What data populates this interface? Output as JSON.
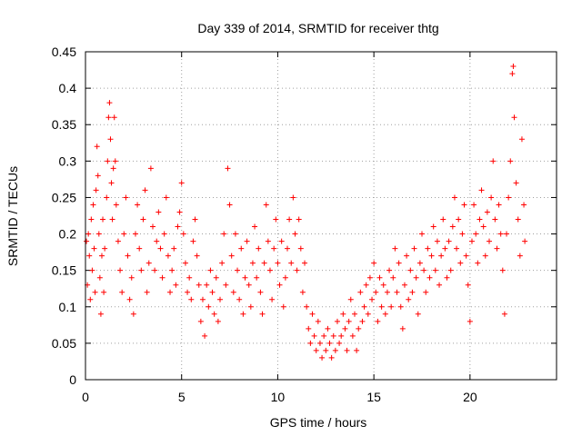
{
  "chart_data": {
    "type": "scatter",
    "title": "Day 339 of 2014, SRMTID for receiver thtg",
    "xlabel": "GPS time / hours",
    "ylabel": "SRMTID / TECUs",
    "xlim": [
      0,
      24.5
    ],
    "ylim": [
      0,
      0.45
    ],
    "x_ticks": [
      0,
      5,
      10,
      15,
      20
    ],
    "y_ticks": [
      0,
      0.05,
      0.1,
      0.15,
      0.2,
      0.25,
      0.3,
      0.35,
      0.4,
      0.45
    ],
    "x_tick_labels": [
      "0",
      "5",
      "10",
      "15",
      "20"
    ],
    "y_tick_labels": [
      "0",
      "0.05",
      "0.1",
      "0.15",
      "0.2",
      "0.25",
      "0.3",
      "0.35",
      "0.4",
      "0.45"
    ],
    "grid": true,
    "marker": "+",
    "marker_color": "#ff0000",
    "series": [
      {
        "name": "SRMTID",
        "points": [
          [
            0.05,
            0.19
          ],
          [
            0.1,
            0.13
          ],
          [
            0.15,
            0.2
          ],
          [
            0.2,
            0.17
          ],
          [
            0.25,
            0.11
          ],
          [
            0.3,
            0.22
          ],
          [
            0.35,
            0.15
          ],
          [
            0.4,
            0.24
          ],
          [
            0.45,
            0.18
          ],
          [
            0.5,
            0.12
          ],
          [
            0.55,
            0.26
          ],
          [
            0.6,
            0.32
          ],
          [
            0.65,
            0.28
          ],
          [
            0.7,
            0.2
          ],
          [
            0.75,
            0.14
          ],
          [
            0.8,
            0.09
          ],
          [
            0.85,
            0.17
          ],
          [
            0.9,
            0.22
          ],
          [
            0.95,
            0.12
          ],
          [
            1.0,
            0.18
          ],
          [
            1.1,
            0.25
          ],
          [
            1.15,
            0.3
          ],
          [
            1.2,
            0.36
          ],
          [
            1.25,
            0.38
          ],
          [
            1.3,
            0.33
          ],
          [
            1.35,
            0.27
          ],
          [
            1.4,
            0.22
          ],
          [
            1.45,
            0.29
          ],
          [
            1.5,
            0.36
          ],
          [
            1.55,
            0.3
          ],
          [
            1.6,
            0.24
          ],
          [
            1.7,
            0.19
          ],
          [
            1.8,
            0.15
          ],
          [
            1.9,
            0.12
          ],
          [
            2.0,
            0.2
          ],
          [
            2.1,
            0.25
          ],
          [
            2.2,
            0.17
          ],
          [
            2.3,
            0.11
          ],
          [
            2.4,
            0.14
          ],
          [
            2.5,
            0.09
          ],
          [
            2.6,
            0.2
          ],
          [
            2.7,
            0.24
          ],
          [
            2.8,
            0.18
          ],
          [
            2.9,
            0.15
          ],
          [
            3.0,
            0.22
          ],
          [
            3.1,
            0.26
          ],
          [
            3.2,
            0.12
          ],
          [
            3.3,
            0.16
          ],
          [
            3.4,
            0.29
          ],
          [
            3.5,
            0.21
          ],
          [
            3.6,
            0.15
          ],
          [
            3.7,
            0.19
          ],
          [
            3.8,
            0.23
          ],
          [
            3.9,
            0.18
          ],
          [
            4.0,
            0.14
          ],
          [
            4.1,
            0.2
          ],
          [
            4.2,
            0.25
          ],
          [
            4.3,
            0.17
          ],
          [
            4.4,
            0.12
          ],
          [
            4.5,
            0.15
          ],
          [
            4.6,
            0.18
          ],
          [
            4.7,
            0.13
          ],
          [
            4.8,
            0.21
          ],
          [
            4.9,
            0.23
          ],
          [
            5.0,
            0.27
          ],
          [
            5.1,
            0.2
          ],
          [
            5.2,
            0.16
          ],
          [
            5.3,
            0.12
          ],
          [
            5.4,
            0.14
          ],
          [
            5.5,
            0.11
          ],
          [
            5.6,
            0.19
          ],
          [
            5.7,
            0.22
          ],
          [
            5.8,
            0.17
          ],
          [
            5.9,
            0.13
          ],
          [
            6.0,
            0.08
          ],
          [
            6.1,
            0.11
          ],
          [
            6.2,
            0.06
          ],
          [
            6.3,
            0.13
          ],
          [
            6.4,
            0.1
          ],
          [
            6.5,
            0.15
          ],
          [
            6.6,
            0.12
          ],
          [
            6.7,
            0.09
          ],
          [
            6.8,
            0.14
          ],
          [
            6.9,
            0.08
          ],
          [
            7.0,
            0.11
          ],
          [
            7.1,
            0.16
          ],
          [
            7.2,
            0.2
          ],
          [
            7.3,
            0.13
          ],
          [
            7.4,
            0.29
          ],
          [
            7.5,
            0.24
          ],
          [
            7.6,
            0.17
          ],
          [
            7.7,
            0.12
          ],
          [
            7.8,
            0.2
          ],
          [
            7.9,
            0.15
          ],
          [
            8.0,
            0.11
          ],
          [
            8.1,
            0.18
          ],
          [
            8.2,
            0.09
          ],
          [
            8.3,
            0.14
          ],
          [
            8.4,
            0.19
          ],
          [
            8.5,
            0.13
          ],
          [
            8.6,
            0.1
          ],
          [
            8.7,
            0.16
          ],
          [
            8.8,
            0.21
          ],
          [
            8.9,
            0.14
          ],
          [
            9.0,
            0.18
          ],
          [
            9.1,
            0.12
          ],
          [
            9.2,
            0.09
          ],
          [
            9.3,
            0.16
          ],
          [
            9.4,
            0.24
          ],
          [
            9.5,
            0.19
          ],
          [
            9.6,
            0.15
          ],
          [
            9.7,
            0.11
          ],
          [
            9.8,
            0.18
          ],
          [
            9.9,
            0.22
          ],
          [
            10.0,
            0.16
          ],
          [
            10.1,
            0.13
          ],
          [
            10.2,
            0.19
          ],
          [
            10.3,
            0.1
          ],
          [
            10.4,
            0.14
          ],
          [
            10.5,
            0.18
          ],
          [
            10.6,
            0.22
          ],
          [
            10.7,
            0.16
          ],
          [
            10.8,
            0.25
          ],
          [
            10.9,
            0.2
          ],
          [
            11.0,
            0.15
          ],
          [
            11.1,
            0.22
          ],
          [
            11.2,
            0.18
          ],
          [
            11.3,
            0.12
          ],
          [
            11.4,
            0.16
          ],
          [
            11.5,
            0.1
          ],
          [
            11.6,
            0.07
          ],
          [
            11.7,
            0.05
          ],
          [
            11.8,
            0.09
          ],
          [
            11.9,
            0.06
          ],
          [
            12.0,
            0.04
          ],
          [
            12.1,
            0.08
          ],
          [
            12.2,
            0.05
          ],
          [
            12.3,
            0.03
          ],
          [
            12.4,
            0.06
          ],
          [
            12.5,
            0.04
          ],
          [
            12.6,
            0.07
          ],
          [
            12.7,
            0.05
          ],
          [
            12.8,
            0.03
          ],
          [
            12.9,
            0.06
          ],
          [
            13.0,
            0.04
          ],
          [
            13.1,
            0.08
          ],
          [
            13.2,
            0.05
          ],
          [
            13.3,
            0.06
          ],
          [
            13.4,
            0.09
          ],
          [
            13.5,
            0.07
          ],
          [
            13.6,
            0.04
          ],
          [
            13.7,
            0.08
          ],
          [
            13.8,
            0.11
          ],
          [
            13.9,
            0.06
          ],
          [
            14.0,
            0.09
          ],
          [
            14.1,
            0.04
          ],
          [
            14.2,
            0.07
          ],
          [
            14.3,
            0.12
          ],
          [
            14.4,
            0.08
          ],
          [
            14.5,
            0.1
          ],
          [
            14.6,
            0.13
          ],
          [
            14.7,
            0.09
          ],
          [
            14.8,
            0.14
          ],
          [
            14.9,
            0.11
          ],
          [
            15.0,
            0.16
          ],
          [
            15.1,
            0.12
          ],
          [
            15.2,
            0.08
          ],
          [
            15.3,
            0.14
          ],
          [
            15.4,
            0.1
          ],
          [
            15.5,
            0.13
          ],
          [
            15.6,
            0.09
          ],
          [
            15.7,
            0.12
          ],
          [
            15.8,
            0.15
          ],
          [
            15.9,
            0.1
          ],
          [
            16.0,
            0.14
          ],
          [
            16.1,
            0.18
          ],
          [
            16.2,
            0.12
          ],
          [
            16.3,
            0.16
          ],
          [
            16.4,
            0.1
          ],
          [
            16.5,
            0.07
          ],
          [
            16.6,
            0.13
          ],
          [
            16.7,
            0.17
          ],
          [
            16.8,
            0.11
          ],
          [
            16.9,
            0.15
          ],
          [
            17.0,
            0.12
          ],
          [
            17.1,
            0.18
          ],
          [
            17.2,
            0.14
          ],
          [
            17.3,
            0.09
          ],
          [
            17.4,
            0.16
          ],
          [
            17.5,
            0.2
          ],
          [
            17.6,
            0.15
          ],
          [
            17.7,
            0.12
          ],
          [
            17.8,
            0.18
          ],
          [
            17.9,
            0.14
          ],
          [
            18.0,
            0.17
          ],
          [
            18.1,
            0.21
          ],
          [
            18.2,
            0.15
          ],
          [
            18.3,
            0.19
          ],
          [
            18.4,
            0.13
          ],
          [
            18.5,
            0.17
          ],
          [
            18.6,
            0.22
          ],
          [
            18.7,
            0.18
          ],
          [
            18.8,
            0.14
          ],
          [
            18.9,
            0.19
          ],
          [
            19.0,
            0.15
          ],
          [
            19.1,
            0.21
          ],
          [
            19.2,
            0.25
          ],
          [
            19.3,
            0.18
          ],
          [
            19.4,
            0.22
          ],
          [
            19.5,
            0.16
          ],
          [
            19.6,
            0.2
          ],
          [
            19.7,
            0.24
          ],
          [
            19.8,
            0.17
          ],
          [
            19.9,
            0.13
          ],
          [
            20.0,
            0.08
          ],
          [
            20.1,
            0.19
          ],
          [
            20.2,
            0.24
          ],
          [
            20.3,
            0.2
          ],
          [
            20.4,
            0.16
          ],
          [
            20.5,
            0.22
          ],
          [
            20.6,
            0.26
          ],
          [
            20.7,
            0.21
          ],
          [
            20.8,
            0.17
          ],
          [
            20.9,
            0.23
          ],
          [
            21.0,
            0.19
          ],
          [
            21.1,
            0.25
          ],
          [
            21.2,
            0.3
          ],
          [
            21.3,
            0.22
          ],
          [
            21.4,
            0.18
          ],
          [
            21.5,
            0.24
          ],
          [
            21.6,
            0.2
          ],
          [
            21.7,
            0.15
          ],
          [
            21.8,
            0.09
          ],
          [
            21.9,
            0.2
          ],
          [
            22.0,
            0.25
          ],
          [
            22.1,
            0.3
          ],
          [
            22.2,
            0.42
          ],
          [
            22.25,
            0.43
          ],
          [
            22.3,
            0.36
          ],
          [
            22.4,
            0.27
          ],
          [
            22.5,
            0.22
          ],
          [
            22.6,
            0.17
          ],
          [
            22.7,
            0.33
          ],
          [
            22.8,
            0.24
          ],
          [
            22.85,
            0.19
          ]
        ]
      }
    ]
  }
}
